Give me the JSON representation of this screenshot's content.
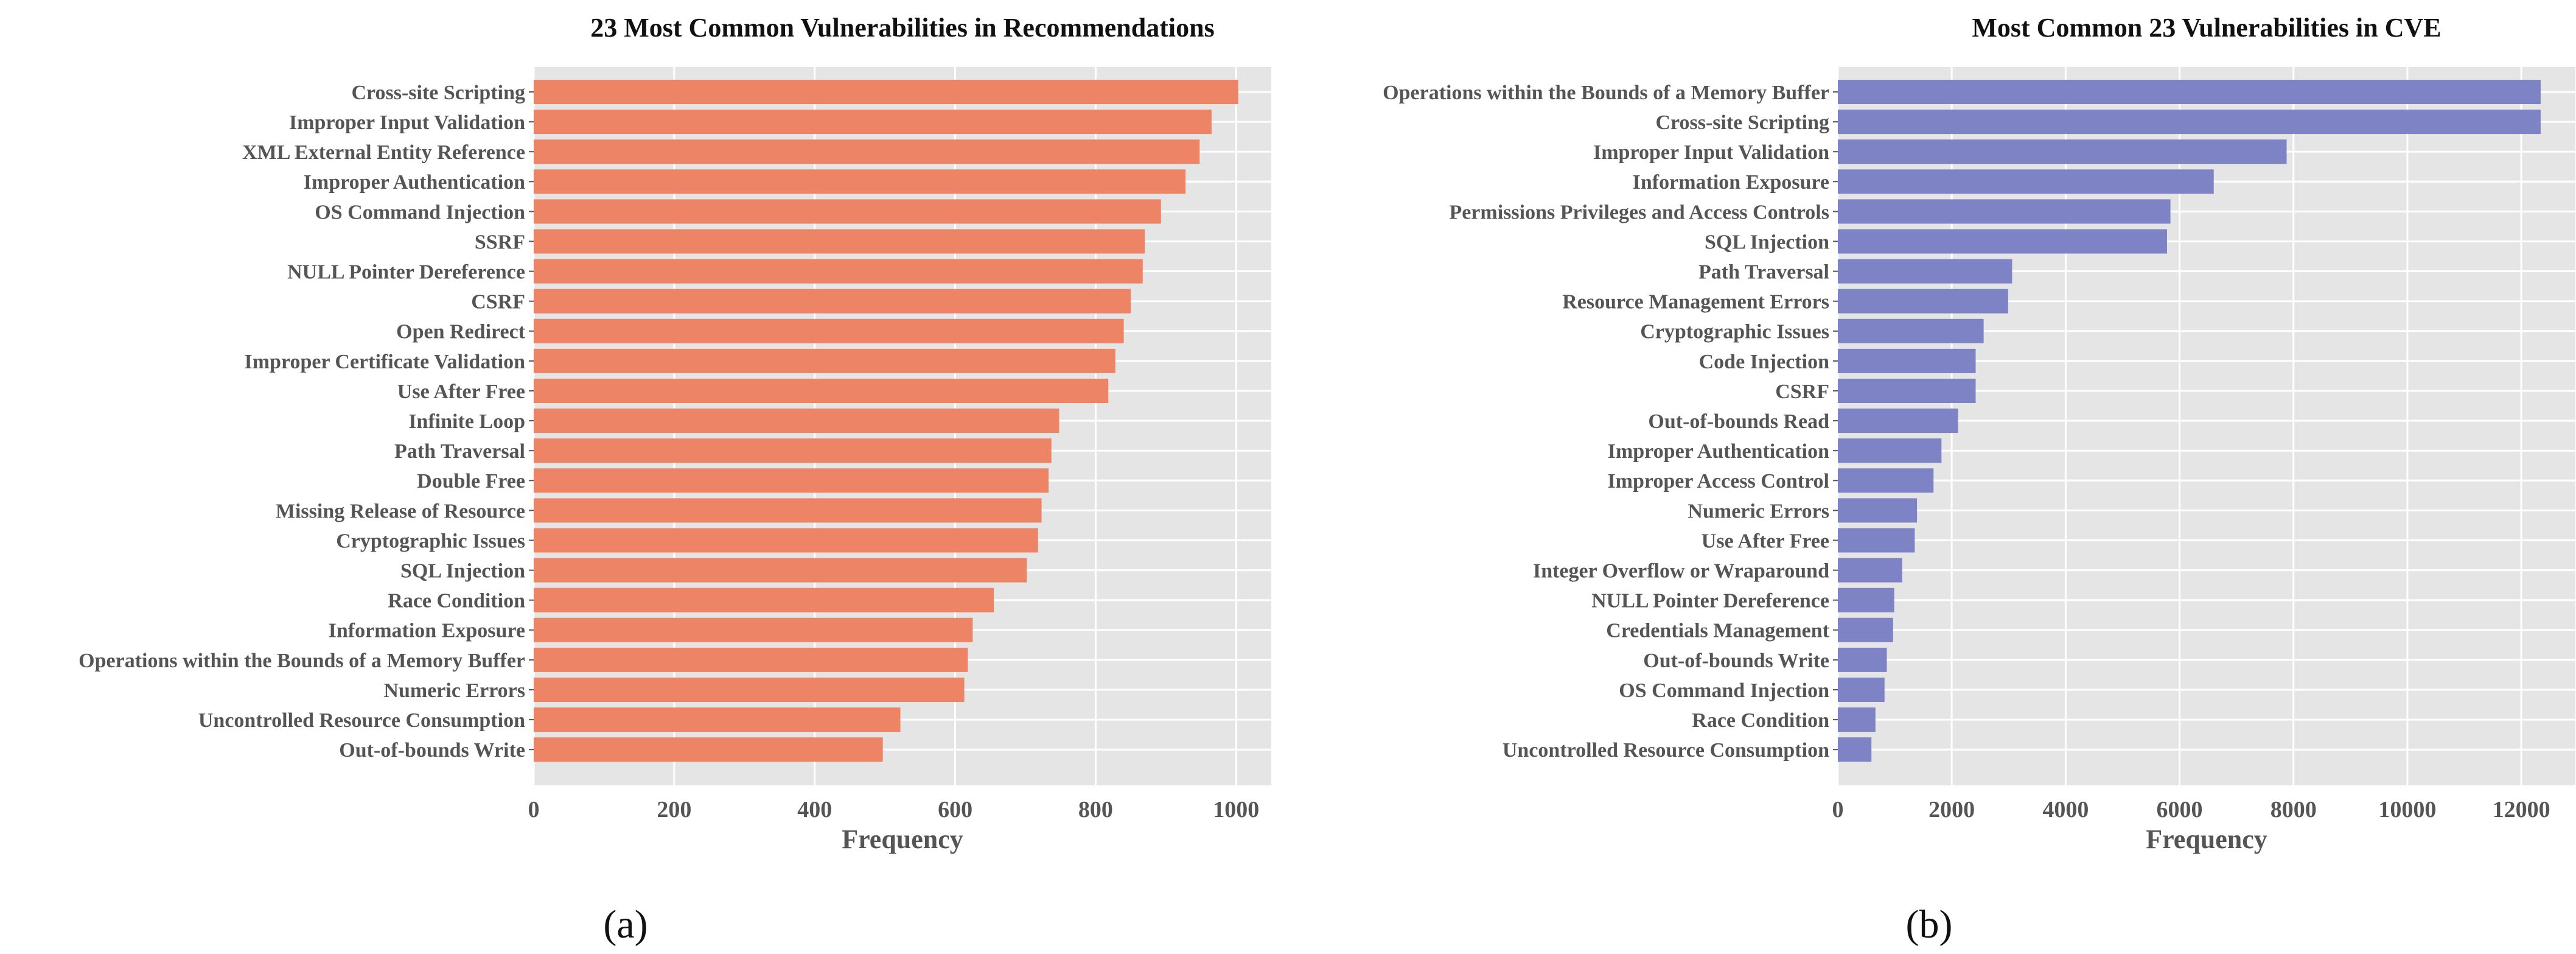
{
  "chart_data": [
    {
      "type": "bar",
      "orientation": "horizontal",
      "title": "23 Most Common Vulnerabilities in Recommendations",
      "xlabel": "Frequency",
      "ylabel": "",
      "caption": "(a)",
      "xlim": [
        0,
        1050
      ],
      "xticks": [
        0,
        200,
        400,
        600,
        800,
        1000
      ],
      "grid": true,
      "color": "#EE8466",
      "categories": [
        "Cross-site Scripting",
        "Improper Input Validation",
        "XML External Entity Reference",
        "Improper Authentication",
        "OS Command Injection",
        "SSRF",
        "NULL Pointer Dereference",
        "CSRF",
        "Open Redirect",
        "Improper Certificate Validation",
        "Use After Free",
        "Infinite Loop",
        "Path Traversal",
        "Double Free",
        "Missing Release of Resource",
        "Cryptographic Issues",
        "SQL Injection",
        "Race Condition",
        "Information Exposure",
        "Operations within the Bounds of a Memory Buffer",
        "Numeric Errors",
        "Uncontrolled Resource Consumption",
        "Out-of-bounds Write"
      ],
      "values": [
        1003,
        965,
        948,
        928,
        893,
        870,
        867,
        850,
        840,
        828,
        818,
        748,
        737,
        733,
        723,
        718,
        702,
        655,
        625,
        618,
        613,
        522,
        497
      ]
    },
    {
      "type": "bar",
      "orientation": "horizontal",
      "title": "Most Common 23 Vulnerabilities in CVE",
      "xlabel": "Frequency",
      "ylabel": "",
      "caption": "(b)",
      "xlim": [
        0,
        12950
      ],
      "xticks": [
        0,
        2000,
        4000,
        6000,
        8000,
        10000,
        12000
      ],
      "grid": true,
      "color": "#7D83C4",
      "categories": [
        "Operations within the Bounds of a Memory Buffer",
        "Cross-site Scripting",
        "Improper Input Validation",
        "Information Exposure",
        "Permissions Privileges and Access Controls",
        "SQL Injection",
        "Path Traversal",
        "Resource Management Errors",
        "Cryptographic Issues",
        "Code Injection",
        "CSRF",
        "Out-of-bounds Read",
        "Improper Authentication",
        "Improper Access Control",
        "Numeric Errors",
        "Use After Free",
        "Integer Overflow or Wraparound",
        "NULL Pointer Dereference",
        "Credentials Management",
        "Out-of-bounds Write",
        "OS Command Injection",
        "Race Condition",
        "Uncontrolled Resource Consumption"
      ],
      "values": [
        12340,
        12340,
        7880,
        6600,
        5840,
        5780,
        3060,
        2990,
        2560,
        2420,
        2420,
        2110,
        1820,
        1680,
        1390,
        1350,
        1130,
        990,
        970,
        860,
        820,
        660,
        590
      ]
    }
  ]
}
